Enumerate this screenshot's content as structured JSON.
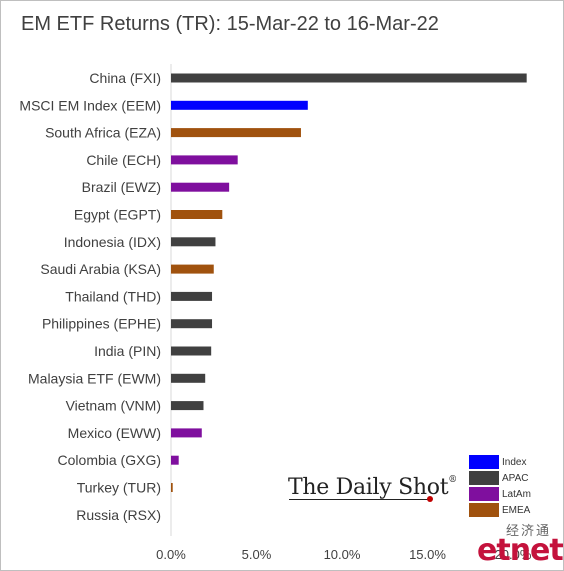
{
  "chart_data": {
    "type": "bar",
    "orientation": "horizontal",
    "title": "EM ETF Returns (TR): 15-Mar-22 to 16-Mar-22",
    "categories": [
      "China (FXI)",
      "MSCI EM Index (EEM)",
      "South Africa (EZA)",
      "Chile (ECH)",
      "Brazil (EWZ)",
      "Egypt (EGPT)",
      "Indonesia (IDX)",
      "Saudi Arabia (KSA)",
      "Thailand (THD)",
      "Philippines (EPHE)",
      "India (PIN)",
      "Malaysia ETF (EWM)",
      "Vietnam (VNM)",
      "Mexico (EWW)",
      "Colombia (GXG)",
      "Turkey (TUR)",
      "Russia (RSX)"
    ],
    "values": [
      20.8,
      8.0,
      7.6,
      3.9,
      3.4,
      3.0,
      2.6,
      2.5,
      2.4,
      2.4,
      2.35,
      2.0,
      1.9,
      1.8,
      0.45,
      0.1,
      0.0
    ],
    "groups": [
      "APAC",
      "Index",
      "EMEA",
      "LatAm",
      "LatAm",
      "EMEA",
      "APAC",
      "EMEA",
      "APAC",
      "APAC",
      "APAC",
      "APAC",
      "APAC",
      "LatAm",
      "LatAm",
      "EMEA",
      "EMEA"
    ],
    "xlim": [
      0,
      22
    ],
    "xticks": [
      0,
      5,
      10,
      15,
      20
    ],
    "xtick_labels": [
      "0.0%",
      "5.0%",
      "10.0%",
      "15.0%",
      "20.0%"
    ],
    "legend": [
      {
        "name": "Index",
        "color": "#0000ff"
      },
      {
        "name": "APAC",
        "color": "#404040"
      },
      {
        "name": "LatAm",
        "color": "#7f0f9e"
      },
      {
        "name": "EMEA",
        "color": "#a0520e"
      }
    ],
    "legend_position": "bottom-right",
    "grid": false
  },
  "watermark": {
    "text": "The Daily Shot",
    "mark": "®"
  },
  "logo": {
    "text": "etnet",
    "chinese": "经济通"
  }
}
